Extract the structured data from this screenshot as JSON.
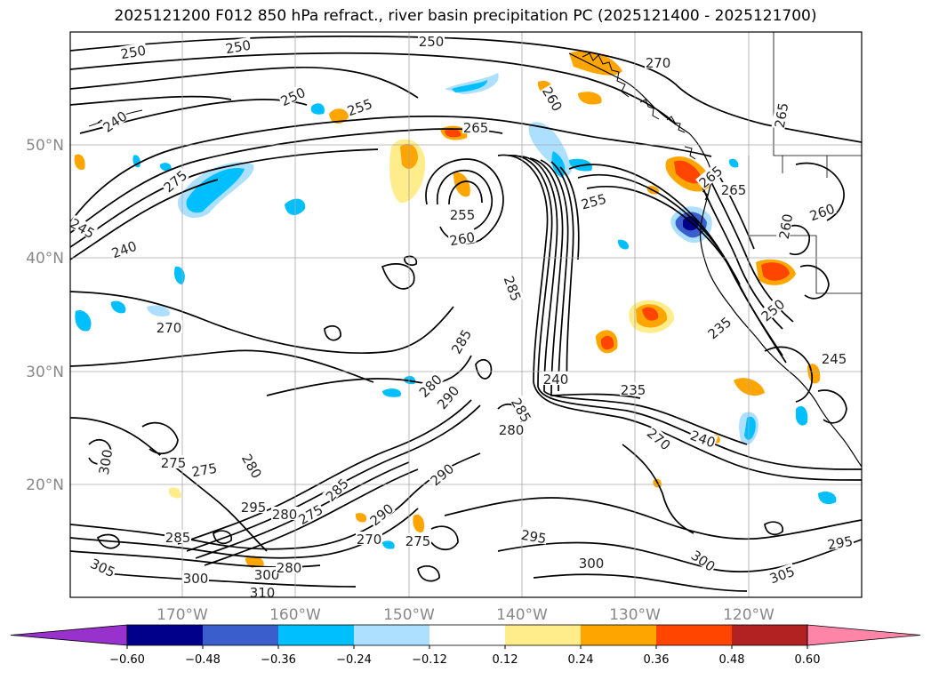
{
  "title": "2025121200 F012 850 hPa refract., river basin precipitation PC (2025121400 - 2025121700)",
  "latitude_labels": [
    "50°N",
    "40°N",
    "30°N",
    "20°N"
  ],
  "longitude_labels": [
    "170°W",
    "160°W",
    "150°W",
    "140°W",
    "130°W",
    "120°W"
  ],
  "colorbar": {
    "colors": [
      "#9932CC",
      "#00008B",
      "#3A5FCD",
      "#00BFFF",
      "#ADDFFF",
      "#FFFFFF",
      "#FFEC8B",
      "#FFA500",
      "#FF4500",
      "#B22222",
      "#FF85A8"
    ],
    "tick_labels": [
      "−0.60",
      "−0.48",
      "−0.36",
      "−0.24",
      "−0.12",
      "0.12",
      "0.24",
      "0.36",
      "0.48",
      "0.60"
    ]
  },
  "contour_labels": [
    "250",
    "250",
    "250",
    "250",
    "240",
    "240",
    "245",
    "265",
    "270",
    "260",
    "265",
    "255",
    "255",
    "260",
    "265",
    "260",
    "265",
    "275",
    "270",
    "285",
    "285",
    "280",
    "290",
    "240",
    "235",
    "235",
    "240",
    "245",
    "250",
    "255",
    "260",
    "270",
    "275",
    "280",
    "285",
    "280",
    "290",
    "295",
    "300",
    "300",
    "305",
    "295",
    "300",
    "275",
    "275",
    "270",
    "295",
    "280",
    "285",
    "290",
    "300",
    "310",
    "305",
    "300",
    "285",
    "280",
    "275"
  ]
}
